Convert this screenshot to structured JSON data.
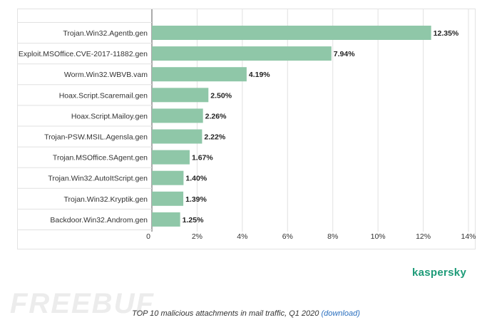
{
  "chart_data": {
    "type": "bar",
    "orientation": "horizontal",
    "categories": [
      "Trojan.Win32.Agentb.gen",
      "Exploit.MSOffice.CVE-2017-11882.gen",
      "Worm.Win32.WBVB.vam",
      "Hoax.Script.Scaremail.gen",
      "Hoax.Script.Mailoy.gen",
      "Trojan-PSW.MSIL.Agensla.gen",
      "Trojan.MSOffice.SAgent.gen",
      "Trojan.Win32.AutoItScript.gen",
      "Trojan.Win32.Kryptik.gen",
      "Backdoor.Win32.Androm.gen"
    ],
    "values": [
      12.35,
      7.94,
      4.19,
      2.5,
      2.26,
      2.22,
      1.67,
      1.4,
      1.39,
      1.25
    ],
    "value_labels": [
      "12.35%",
      "7.94%",
      "4.19%",
      "2.50%",
      "2.26%",
      "2.22%",
      "1.67%",
      "1.40%",
      "1.39%",
      "1.25%"
    ],
    "x_ticks": [
      "0",
      "2%",
      "4%",
      "6%",
      "8%",
      "10%",
      "12%",
      "14%"
    ],
    "xlim": [
      0,
      14
    ],
    "bar_color": "#8fc7a8",
    "grid": true
  },
  "brand": "kaspersky",
  "brand_color": "#1d9b78",
  "watermark": "FREEBUF",
  "caption": {
    "text": "TOP 10 malicious attachments in mail traffic, Q1 2020",
    "link": "(download)"
  }
}
